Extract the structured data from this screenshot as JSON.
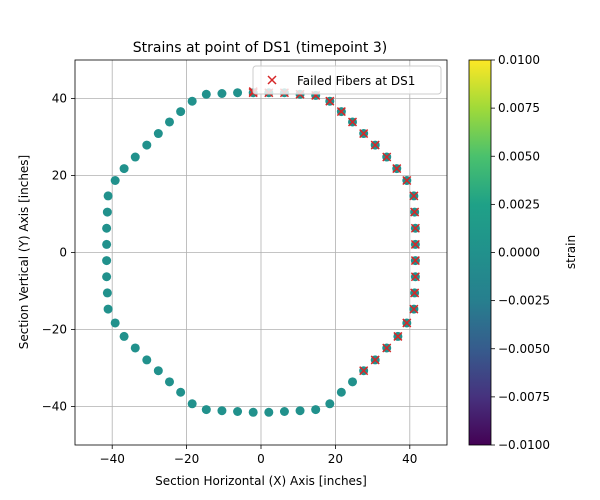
{
  "chart_data": {
    "type": "scatter",
    "title": "Strains at point of DS1 (timepoint 3)",
    "xlabel": "Section Horizontal (X) Axis [inches]",
    "ylabel": "Section Vertical (Y) Axis [inches]",
    "xlim": [
      -50,
      50
    ],
    "ylim": [
      -50,
      50
    ],
    "xticks": [
      -40,
      -20,
      0,
      20,
      40
    ],
    "yticks": [
      -40,
      -20,
      0,
      20,
      40
    ],
    "xtick_labels": [
      "−40",
      "−20",
      "0",
      "20",
      "40"
    ],
    "ytick_labels": [
      "−40",
      "−20",
      "0",
      "20",
      "40"
    ],
    "grid": true,
    "legend": {
      "placement": "top-right",
      "entries": [
        "Failed Fibers at DS1"
      ]
    },
    "colorbar": {
      "label": "strain",
      "colormap": "viridis",
      "range": [
        -0.01,
        0.01
      ],
      "ticks": [
        -0.01,
        -0.0075,
        -0.005,
        -0.0025,
        0.0,
        0.0025,
        0.005,
        0.0075,
        0.01
      ],
      "tick_labels": [
        "−0.0100",
        "−0.0075",
        "−0.0050",
        "−0.0025",
        "0.0000",
        "0.0025",
        "0.0050",
        "0.0075",
        "0.0100"
      ]
    },
    "series": [
      {
        "marker": "circle",
        "color": "#21918c",
        "strain": 0.0,
        "points": [
          [
            41.5,
            2.1
          ],
          [
            41.5,
            6.3
          ],
          [
            41.3,
            10.5
          ],
          [
            41.1,
            14.7
          ],
          [
            39.2,
            18.7
          ],
          [
            36.5,
            21.8
          ],
          [
            33.8,
            24.8
          ],
          [
            30.7,
            27.9
          ],
          [
            27.6,
            30.9
          ],
          [
            24.6,
            33.9
          ],
          [
            21.6,
            36.6
          ],
          [
            18.5,
            39.3
          ],
          [
            14.7,
            40.8
          ],
          [
            10.5,
            41.1
          ],
          [
            6.3,
            41.5
          ],
          [
            2.1,
            41.5
          ],
          [
            -2.1,
            41.5
          ],
          [
            -6.3,
            41.5
          ],
          [
            -10.5,
            41.3
          ],
          [
            -14.7,
            41.1
          ],
          [
            -18.5,
            39.3
          ],
          [
            -21.6,
            36.6
          ],
          [
            -24.6,
            33.9
          ],
          [
            -27.6,
            30.9
          ],
          [
            -30.7,
            27.9
          ],
          [
            -33.8,
            24.8
          ],
          [
            -36.8,
            21.8
          ],
          [
            -39.2,
            18.7
          ],
          [
            -41.1,
            14.7
          ],
          [
            -41.3,
            10.5
          ],
          [
            -41.5,
            6.3
          ],
          [
            -41.5,
            2.1
          ],
          [
            -41.5,
            -2.1
          ],
          [
            -41.5,
            -6.3
          ],
          [
            -41.3,
            -10.5
          ],
          [
            -41.1,
            -14.7
          ],
          [
            -39.2,
            -18.3
          ],
          [
            -36.8,
            -21.8
          ],
          [
            -33.8,
            -24.8
          ],
          [
            -30.7,
            -27.9
          ],
          [
            -27.6,
            -30.7
          ],
          [
            -24.6,
            -33.6
          ],
          [
            -21.6,
            -36.3
          ],
          [
            -18.5,
            -39.3
          ],
          [
            -14.7,
            -40.8
          ],
          [
            -10.5,
            -41.1
          ],
          [
            -6.3,
            -41.3
          ],
          [
            -2.1,
            -41.5
          ],
          [
            2.1,
            -41.5
          ],
          [
            6.3,
            -41.3
          ],
          [
            10.5,
            -41.1
          ],
          [
            14.7,
            -40.8
          ],
          [
            18.5,
            -39.3
          ],
          [
            21.6,
            -36.3
          ],
          [
            24.6,
            -33.6
          ],
          [
            27.6,
            -30.7
          ],
          [
            30.7,
            -27.9
          ],
          [
            33.8,
            -24.8
          ],
          [
            36.8,
            -21.8
          ],
          [
            39.2,
            -18.3
          ],
          [
            41.1,
            -14.7
          ],
          [
            41.3,
            -10.5
          ],
          [
            41.5,
            -6.3
          ],
          [
            41.5,
            -2.1
          ]
        ]
      },
      {
        "name": "Failed Fibers at DS1",
        "marker": "x",
        "color": "#d62728",
        "points": [
          [
            41.5,
            2.1
          ],
          [
            41.5,
            6.3
          ],
          [
            41.3,
            10.5
          ],
          [
            41.1,
            14.7
          ],
          [
            39.2,
            18.7
          ],
          [
            36.5,
            21.8
          ],
          [
            33.8,
            24.8
          ],
          [
            30.7,
            27.9
          ],
          [
            27.6,
            30.9
          ],
          [
            24.6,
            33.9
          ],
          [
            21.6,
            36.6
          ],
          [
            18.5,
            39.3
          ],
          [
            14.7,
            40.8
          ],
          [
            10.5,
            41.1
          ],
          [
            6.3,
            41.5
          ],
          [
            2.1,
            41.5
          ],
          [
            -2.1,
            41.5
          ],
          [
            -2.1,
            41.8
          ],
          [
            41.5,
            -2.1
          ],
          [
            41.5,
            -6.3
          ],
          [
            41.3,
            -10.5
          ],
          [
            41.1,
            -14.7
          ],
          [
            39.2,
            -18.3
          ],
          [
            36.8,
            -21.8
          ],
          [
            33.8,
            -24.8
          ],
          [
            30.7,
            -27.9
          ],
          [
            27.6,
            -30.7
          ]
        ]
      }
    ]
  }
}
